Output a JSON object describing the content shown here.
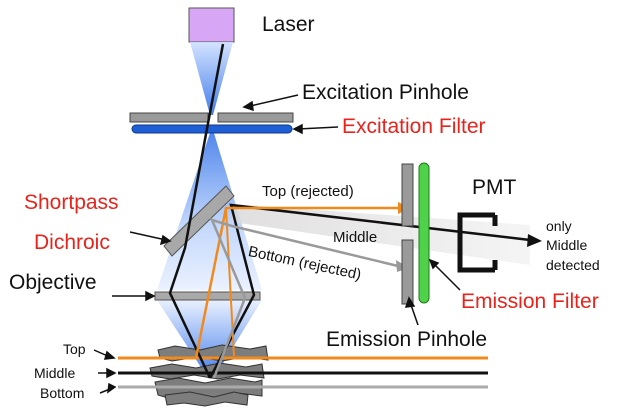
{
  "labels": {
    "laser": "Laser",
    "excitation_pinhole": "Excitation Pinhole",
    "excitation_filter": "Excitation Filter",
    "shortpass": "Shortpass",
    "dichroic": "Dichroic",
    "objective": "Objective",
    "pmt": "PMT",
    "only": "only",
    "middle_detected_1": "Middle",
    "detected": "detected",
    "top_rejected": "Top (rejected)",
    "middle": "Middle",
    "bottom_rejected": "Bottom (rejected)",
    "emission_filter": "Emission Filter",
    "emission_pinhole": "Emission Pinhole",
    "plane_top": "Top",
    "plane_middle": "Middle",
    "plane_bottom": "Bottom"
  },
  "colors": {
    "laser": "#d7a6f5",
    "beam_blue": "#3b82f6",
    "filter_blue": "#1f5fd6",
    "emission_filter": "#4fd14a",
    "orange": "#f08a1c",
    "grey": "#9a9a9a",
    "accent_red": "#e8231c"
  }
}
